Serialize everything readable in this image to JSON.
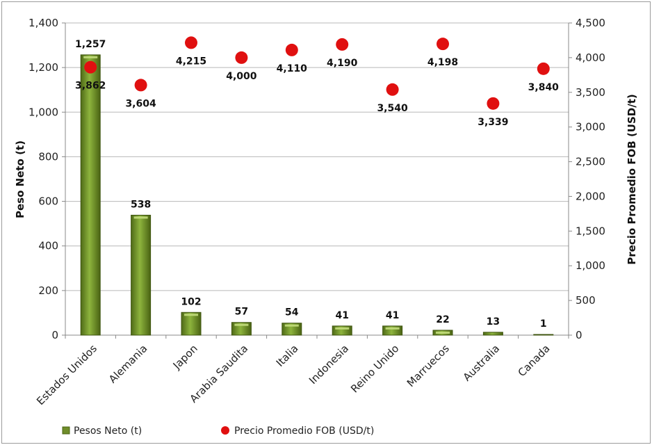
{
  "chart_data": {
    "type": "bar+scatter",
    "categories": [
      "Estados Unidos",
      "Alemania",
      "Japon",
      "Arabia Saudita",
      "Italia",
      "Indonesia",
      "Reino Unido",
      "Marruecos",
      "Australia",
      "Canada"
    ],
    "series": [
      {
        "name": "Pesos Neto (t)",
        "type": "bar",
        "axis": "left",
        "values": [
          1257,
          538,
          102,
          57,
          54,
          41,
          41,
          22,
          13,
          1
        ],
        "labels": [
          "1,257",
          "538",
          "102",
          "57",
          "54",
          "41",
          "41",
          "22",
          "13",
          "1"
        ],
        "color": "#6f8d2a"
      },
      {
        "name": "Precio Promedio FOB (USD/t)",
        "type": "scatter",
        "axis": "right",
        "values": [
          3862,
          3604,
          4215,
          4000,
          4110,
          4190,
          3540,
          4198,
          3339,
          3840
        ],
        "labels": [
          "3,862",
          "3,604",
          "4,215",
          "4,000",
          "4,110",
          "4,190",
          "3,540",
          "4,198",
          "3,339",
          "3,840"
        ],
        "color": "#e01010"
      }
    ],
    "y_left": {
      "label": "Peso Neto (t)",
      "lim": [
        0,
        1400
      ],
      "ticks": [
        0,
        200,
        400,
        600,
        800,
        1000,
        1200,
        1400
      ],
      "tick_labels": [
        "0",
        "200",
        "400",
        "600",
        "800",
        "1,000",
        "1,200",
        "1,400"
      ]
    },
    "y_right": {
      "label": "Precio Promedio FOB (USD/t)",
      "lim": [
        0,
        4500
      ],
      "ticks": [
        0,
        500,
        1000,
        1500,
        2000,
        2500,
        3000,
        3500,
        4000,
        4500
      ],
      "tick_labels": [
        "0",
        "500",
        "1,000",
        "1,500",
        "2,000",
        "2,500",
        "3,000",
        "3,500",
        "4,000",
        "4,500"
      ]
    },
    "grid": true,
    "legend_position": "bottom-left",
    "legend": [
      "Pesos Neto (t)",
      "Precio Promedio FOB (USD/t)"
    ]
  }
}
